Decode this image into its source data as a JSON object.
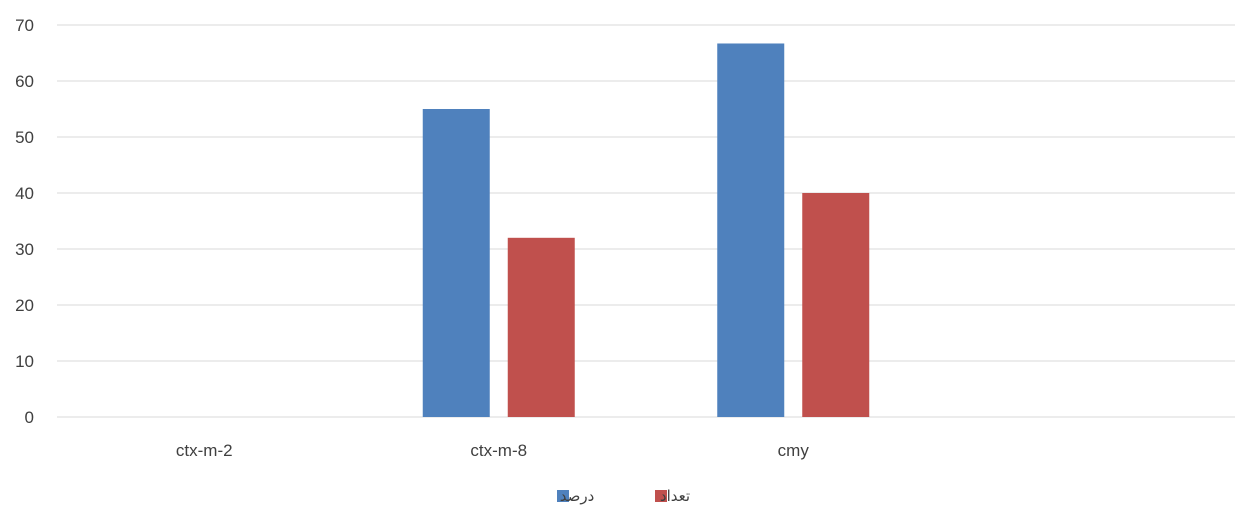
{
  "chart_data": {
    "type": "bar",
    "categories": [
      "ctx-m-2",
      "ctx-m-8",
      "cmy",
      ""
    ],
    "series": [
      {
        "name": "درصد",
        "color": "#4F81BD",
        "values": [
          0,
          55,
          66.7,
          0
        ]
      },
      {
        "name": "تعداد",
        "color": "#C0504D",
        "values": [
          0,
          32,
          40,
          0
        ]
      }
    ],
    "ylim": [
      0,
      70
    ],
    "yticks": [
      0,
      10,
      20,
      30,
      40,
      50,
      60,
      70
    ],
    "grid": true,
    "legend_position": "bottom",
    "title": "",
    "xlabel": "",
    "ylabel": ""
  }
}
